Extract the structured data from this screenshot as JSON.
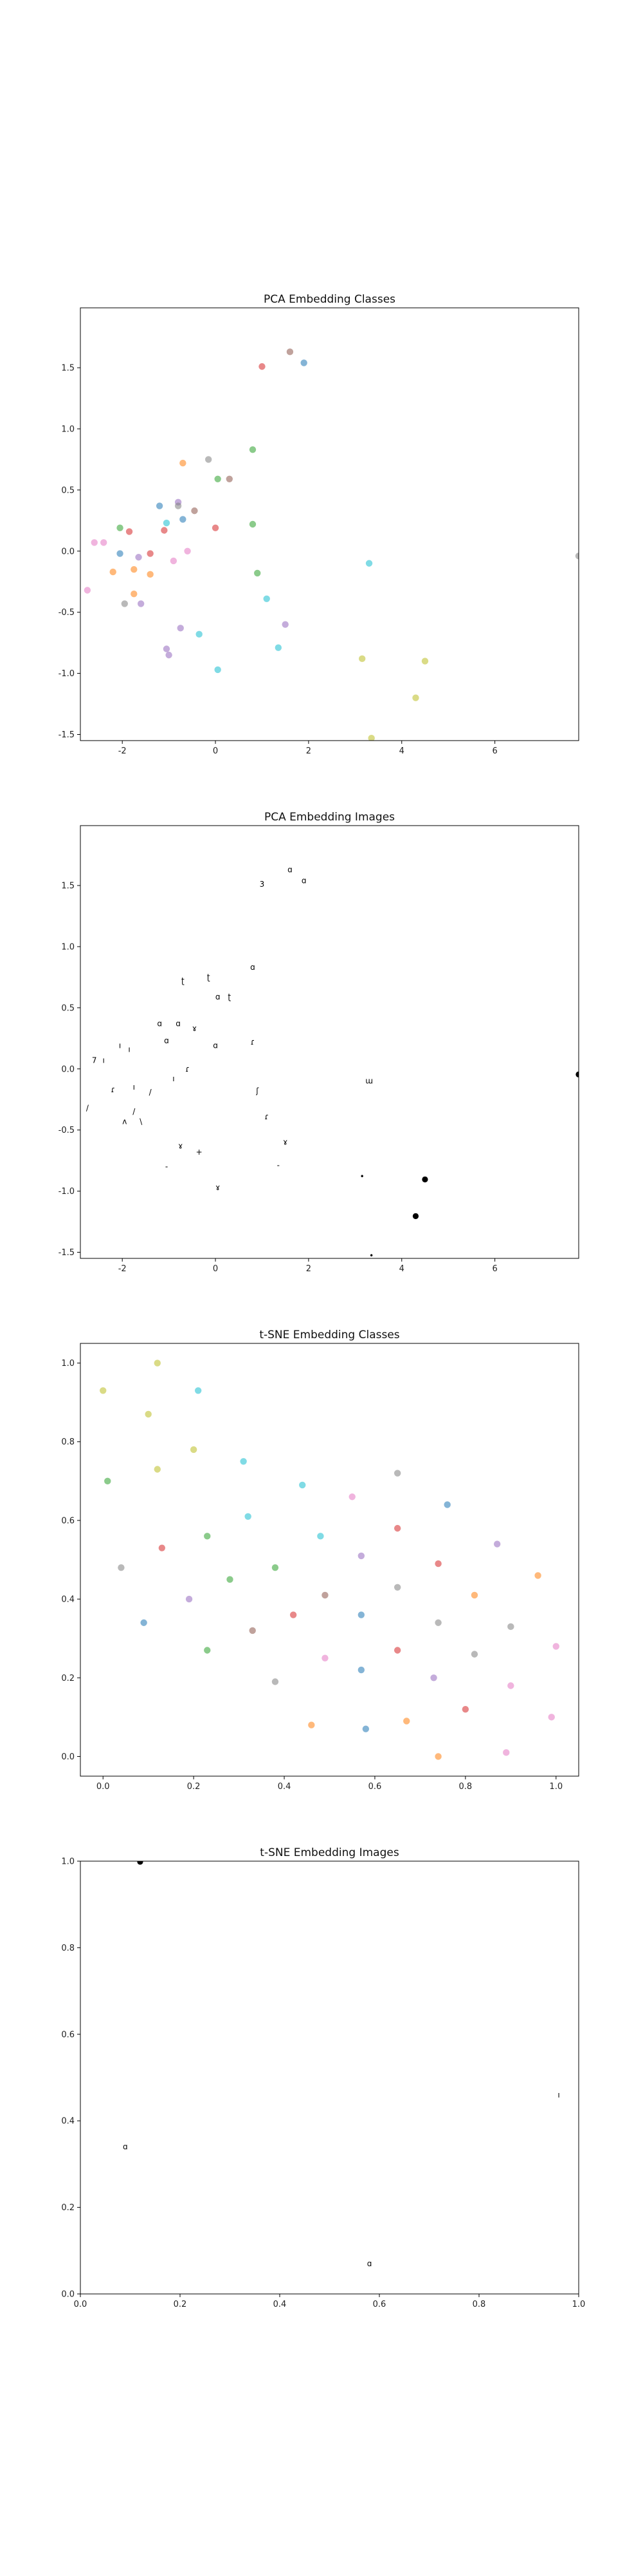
{
  "chart_data": [
    {
      "type": "scatter",
      "title": "PCA Embedding Classes",
      "xlim": [
        -2.9,
        7.8
      ],
      "ylim": [
        -1.55,
        1.99
      ],
      "xticks": [
        "-2",
        "0",
        "2",
        "4",
        "6"
      ],
      "xtick_values": [
        -2,
        0,
        2,
        4,
        6
      ],
      "yticks": [
        "1.5",
        "1.0",
        "0.5",
        "0.0",
        "-0.5",
        "-1.0",
        "-1.5"
      ],
      "ytick_values": [
        1.5,
        1.0,
        0.5,
        0.0,
        -0.5,
        -1.0,
        -1.5
      ],
      "grid": false,
      "points": [
        {
          "x": -2.75,
          "y": -0.32,
          "c": "#e377c2"
        },
        {
          "x": -2.6,
          "y": 0.07,
          "c": "#e377c2"
        },
        {
          "x": -2.4,
          "y": 0.07,
          "c": "#e377c2"
        },
        {
          "x": -2.2,
          "y": -0.17,
          "c": "#ff7f0e"
        },
        {
          "x": -2.05,
          "y": 0.19,
          "c": "#2ca02c"
        },
        {
          "x": -2.05,
          "y": -0.02,
          "c": "#1f77b4"
        },
        {
          "x": -1.95,
          "y": -0.43,
          "c": "#7f7f7f"
        },
        {
          "x": -1.85,
          "y": 0.16,
          "c": "#d62728"
        },
        {
          "x": -1.75,
          "y": -0.15,
          "c": "#ff7f0e"
        },
        {
          "x": -1.75,
          "y": -0.35,
          "c": "#ff7f0e"
        },
        {
          "x": -1.65,
          "y": -0.05,
          "c": "#9467bd"
        },
        {
          "x": -1.6,
          "y": -0.43,
          "c": "#9467bd"
        },
        {
          "x": -1.4,
          "y": -0.02,
          "c": "#d62728"
        },
        {
          "x": -1.4,
          "y": -0.19,
          "c": "#ff7f0e"
        },
        {
          "x": -1.2,
          "y": 0.37,
          "c": "#1f77b4"
        },
        {
          "x": -1.1,
          "y": 0.17,
          "c": "#d62728"
        },
        {
          "x": -1.05,
          "y": 0.23,
          "c": "#17becf"
        },
        {
          "x": -1.05,
          "y": -0.8,
          "c": "#9467bd"
        },
        {
          "x": -1.0,
          "y": -0.85,
          "c": "#9467bd"
        },
        {
          "x": -0.9,
          "y": -0.08,
          "c": "#e377c2"
        },
        {
          "x": -0.8,
          "y": 0.4,
          "c": "#9467bd"
        },
        {
          "x": -0.8,
          "y": 0.37,
          "c": "#7f7f7f"
        },
        {
          "x": -0.75,
          "y": -0.63,
          "c": "#9467bd"
        },
        {
          "x": -0.7,
          "y": 0.72,
          "c": "#ff7f0e"
        },
        {
          "x": -0.7,
          "y": 0.26,
          "c": "#1f77b4"
        },
        {
          "x": -0.6,
          "y": 0.0,
          "c": "#e377c2"
        },
        {
          "x": -0.45,
          "y": 0.33,
          "c": "#8c564b"
        },
        {
          "x": -0.35,
          "y": -0.68,
          "c": "#17becf"
        },
        {
          "x": -0.15,
          "y": 0.75,
          "c": "#7f7f7f"
        },
        {
          "x": 0.0,
          "y": 0.19,
          "c": "#d62728"
        },
        {
          "x": 0.05,
          "y": 0.59,
          "c": "#2ca02c"
        },
        {
          "x": 0.05,
          "y": -0.97,
          "c": "#17becf"
        },
        {
          "x": 0.3,
          "y": 0.59,
          "c": "#8c564b"
        },
        {
          "x": 0.8,
          "y": 0.83,
          "c": "#2ca02c"
        },
        {
          "x": 0.8,
          "y": 0.22,
          "c": "#2ca02c"
        },
        {
          "x": 0.9,
          "y": -0.18,
          "c": "#2ca02c"
        },
        {
          "x": 1.0,
          "y": 1.51,
          "c": "#d62728"
        },
        {
          "x": 1.1,
          "y": -0.39,
          "c": "#17becf"
        },
        {
          "x": 1.35,
          "y": -0.79,
          "c": "#17becf"
        },
        {
          "x": 1.5,
          "y": -0.6,
          "c": "#9467bd"
        },
        {
          "x": 1.6,
          "y": 1.63,
          "c": "#8c564b"
        },
        {
          "x": 1.9,
          "y": 1.54,
          "c": "#1f77b4"
        },
        {
          "x": 3.15,
          "y": -0.88,
          "c": "#bcbd22"
        },
        {
          "x": 3.3,
          "y": -0.1,
          "c": "#17becf"
        },
        {
          "x": 3.35,
          "y": -1.53,
          "c": "#bcbd22"
        },
        {
          "x": 4.3,
          "y": -1.2,
          "c": "#bcbd22"
        },
        {
          "x": 4.5,
          "y": -0.9,
          "c": "#bcbd22"
        },
        {
          "x": 7.8,
          "y": -0.04,
          "c": "#7f7f7f"
        }
      ]
    },
    {
      "type": "scatter",
      "title": "PCA Embedding Images",
      "xlim": [
        -2.9,
        7.8
      ],
      "ylim": [
        -1.55,
        1.99
      ],
      "xticks": [
        "-2",
        "0",
        "2",
        "4",
        "6"
      ],
      "xtick_values": [
        -2,
        0,
        2,
        4,
        6
      ],
      "yticks": [
        "1.5",
        "1.0",
        "0.5",
        "0.0",
        "-0.5",
        "-1.0",
        "-1.5"
      ],
      "ytick_values": [
        1.5,
        1.0,
        0.5,
        0.0,
        -0.5,
        -1.0,
        -1.5
      ],
      "grid": false,
      "points": [
        {
          "x": -2.75,
          "y": -0.32,
          "t": "/"
        },
        {
          "x": -2.6,
          "y": 0.07,
          "t": "7"
        },
        {
          "x": -2.4,
          "y": 0.07,
          "t": "ı"
        },
        {
          "x": -2.2,
          "y": -0.17,
          "t": "ɾ"
        },
        {
          "x": -2.05,
          "y": 0.19,
          "t": "ı"
        },
        {
          "x": -1.95,
          "y": -0.43,
          "t": "ʌ"
        },
        {
          "x": -1.85,
          "y": 0.16,
          "t": "ı"
        },
        {
          "x": -1.75,
          "y": -0.15,
          "t": "ı"
        },
        {
          "x": -1.75,
          "y": -0.35,
          "t": "/"
        },
        {
          "x": -1.6,
          "y": -0.43,
          "t": "\\"
        },
        {
          "x": -1.4,
          "y": -0.19,
          "t": "/"
        },
        {
          "x": -1.2,
          "y": 0.37,
          "t": "ɑ"
        },
        {
          "x": -1.05,
          "y": 0.23,
          "t": "ɑ"
        },
        {
          "x": -1.05,
          "y": -0.8,
          "t": "-"
        },
        {
          "x": -0.9,
          "y": -0.08,
          "t": "ı"
        },
        {
          "x": -0.8,
          "y": 0.37,
          "t": "ɑ"
        },
        {
          "x": -0.75,
          "y": -0.63,
          "t": "ɤ"
        },
        {
          "x": -0.7,
          "y": 0.72,
          "t": "ʈ"
        },
        {
          "x": -0.6,
          "y": 0.0,
          "t": "ɾ"
        },
        {
          "x": -0.45,
          "y": 0.33,
          "t": "ɤ"
        },
        {
          "x": -0.35,
          "y": -0.68,
          "t": "+"
        },
        {
          "x": -0.15,
          "y": 0.75,
          "t": "ʈ"
        },
        {
          "x": 0.0,
          "y": 0.19,
          "t": "ɑ"
        },
        {
          "x": 0.05,
          "y": 0.59,
          "t": "ɑ"
        },
        {
          "x": 0.05,
          "y": -0.97,
          "t": "ɤ"
        },
        {
          "x": 0.3,
          "y": 0.59,
          "t": "ʈ"
        },
        {
          "x": 0.8,
          "y": 0.83,
          "t": "ɑ"
        },
        {
          "x": 0.8,
          "y": 0.22,
          "t": "ɾ"
        },
        {
          "x": 0.9,
          "y": -0.18,
          "t": "ʃ"
        },
        {
          "x": 1.0,
          "y": 1.51,
          "t": "3"
        },
        {
          "x": 1.1,
          "y": -0.39,
          "t": "ɾ"
        },
        {
          "x": 1.35,
          "y": -0.79,
          "t": "-"
        },
        {
          "x": 1.5,
          "y": -0.6,
          "t": "ɤ"
        },
        {
          "x": 1.6,
          "y": 1.63,
          "t": "ɑ"
        },
        {
          "x": 1.9,
          "y": 1.54,
          "t": "ɑ"
        },
        {
          "x": 3.15,
          "y": -0.88,
          "t": "•"
        },
        {
          "x": 3.3,
          "y": -0.1,
          "t": "ɯ"
        },
        {
          "x": 3.35,
          "y": -1.53,
          "t": "•"
        },
        {
          "x": 4.3,
          "y": -1.2,
          "t": "●"
        },
        {
          "x": 4.5,
          "y": -0.9,
          "t": "●"
        },
        {
          "x": 7.8,
          "y": -0.04,
          "t": "●"
        }
      ]
    },
    {
      "type": "scatter",
      "title": "t-SNE Embedding Classes",
      "xlim": [
        -0.05,
        1.05
      ],
      "ylim": [
        -0.05,
        1.05
      ],
      "xticks": [
        "0.0",
        "0.2",
        "0.4",
        "0.6",
        "0.8",
        "1.0"
      ],
      "xtick_values": [
        0.0,
        0.2,
        0.4,
        0.6,
        0.8,
        1.0
      ],
      "yticks": [
        "1.0",
        "0.8",
        "0.6",
        "0.4",
        "0.2",
        "0.0"
      ],
      "ytick_values": [
        1.0,
        0.8,
        0.6,
        0.4,
        0.2,
        0.0
      ],
      "grid": false,
      "points": [
        {
          "x": 0.0,
          "y": 0.93,
          "c": "#bcbd22"
        },
        {
          "x": 0.01,
          "y": 0.7,
          "c": "#2ca02c"
        },
        {
          "x": 0.04,
          "y": 0.48,
          "c": "#7f7f7f"
        },
        {
          "x": 0.09,
          "y": 0.34,
          "c": "#1f77b4"
        },
        {
          "x": 0.1,
          "y": 0.87,
          "c": "#bcbd22"
        },
        {
          "x": 0.12,
          "y": 1.0,
          "c": "#bcbd22"
        },
        {
          "x": 0.12,
          "y": 0.73,
          "c": "#bcbd22"
        },
        {
          "x": 0.13,
          "y": 0.53,
          "c": "#d62728"
        },
        {
          "x": 0.19,
          "y": 0.4,
          "c": "#9467bd"
        },
        {
          "x": 0.2,
          "y": 0.78,
          "c": "#bcbd22"
        },
        {
          "x": 0.21,
          "y": 0.93,
          "c": "#17becf"
        },
        {
          "x": 0.23,
          "y": 0.56,
          "c": "#2ca02c"
        },
        {
          "x": 0.23,
          "y": 0.27,
          "c": "#2ca02c"
        },
        {
          "x": 0.28,
          "y": 0.45,
          "c": "#2ca02c"
        },
        {
          "x": 0.31,
          "y": 0.75,
          "c": "#17becf"
        },
        {
          "x": 0.32,
          "y": 0.61,
          "c": "#17becf"
        },
        {
          "x": 0.33,
          "y": 0.32,
          "c": "#8c564b"
        },
        {
          "x": 0.38,
          "y": 0.48,
          "c": "#2ca02c"
        },
        {
          "x": 0.38,
          "y": 0.19,
          "c": "#7f7f7f"
        },
        {
          "x": 0.42,
          "y": 0.36,
          "c": "#d62728"
        },
        {
          "x": 0.44,
          "y": 0.69,
          "c": "#17becf"
        },
        {
          "x": 0.46,
          "y": 0.08,
          "c": "#ff7f0e"
        },
        {
          "x": 0.48,
          "y": 0.56,
          "c": "#17becf"
        },
        {
          "x": 0.49,
          "y": 0.41,
          "c": "#8c564b"
        },
        {
          "x": 0.49,
          "y": 0.25,
          "c": "#e377c2"
        },
        {
          "x": 0.55,
          "y": 0.66,
          "c": "#e377c2"
        },
        {
          "x": 0.57,
          "y": 0.51,
          "c": "#9467bd"
        },
        {
          "x": 0.57,
          "y": 0.36,
          "c": "#1f77b4"
        },
        {
          "x": 0.57,
          "y": 0.22,
          "c": "#1f77b4"
        },
        {
          "x": 0.58,
          "y": 0.07,
          "c": "#1f77b4"
        },
        {
          "x": 0.65,
          "y": 0.72,
          "c": "#7f7f7f"
        },
        {
          "x": 0.65,
          "y": 0.58,
          "c": "#d62728"
        },
        {
          "x": 0.65,
          "y": 0.43,
          "c": "#7f7f7f"
        },
        {
          "x": 0.65,
          "y": 0.27,
          "c": "#d62728"
        },
        {
          "x": 0.67,
          "y": 0.09,
          "c": "#ff7f0e"
        },
        {
          "x": 0.73,
          "y": 0.2,
          "c": "#9467bd"
        },
        {
          "x": 0.74,
          "y": 0.49,
          "c": "#d62728"
        },
        {
          "x": 0.74,
          "y": 0.34,
          "c": "#7f7f7f"
        },
        {
          "x": 0.74,
          "y": 0.0,
          "c": "#ff7f0e"
        },
        {
          "x": 0.76,
          "y": 0.64,
          "c": "#1f77b4"
        },
        {
          "x": 0.8,
          "y": 0.12,
          "c": "#d62728"
        },
        {
          "x": 0.82,
          "y": 0.41,
          "c": "#ff7f0e"
        },
        {
          "x": 0.82,
          "y": 0.26,
          "c": "#7f7f7f"
        },
        {
          "x": 0.87,
          "y": 0.54,
          "c": "#9467bd"
        },
        {
          "x": 0.89,
          "y": 0.01,
          "c": "#e377c2"
        },
        {
          "x": 0.9,
          "y": 0.33,
          "c": "#7f7f7f"
        },
        {
          "x": 0.9,
          "y": 0.18,
          "c": "#e377c2"
        },
        {
          "x": 0.96,
          "y": 0.46,
          "c": "#ff7f0e"
        },
        {
          "x": 0.99,
          "y": 0.1,
          "c": "#e377c2"
        },
        {
          "x": 1.0,
          "y": 0.28,
          "c": "#e377c2"
        }
      ]
    },
    {
      "type": "scatter",
      "title": "t-SNE Embedding Images",
      "xlim": [
        0.0,
        1.0
      ],
      "ylim": [
        0.0,
        1.0
      ],
      "xticks": [
        "0.0",
        "0.2",
        "0.4",
        "0.6",
        "0.8",
        "1.0"
      ],
      "xtick_values": [
        0.0,
        0.2,
        0.4,
        0.6,
        0.8,
        1.0
      ],
      "yticks": [
        "1.0",
        "0.8",
        "0.6",
        "0.4",
        "0.2",
        "0.0"
      ],
      "ytick_values": [
        1.0,
        0.8,
        0.6,
        0.4,
        0.2,
        0.0
      ],
      "grid": false,
      "points": [
        {
          "x": 0.12,
          "y": 1.0,
          "t": "●"
        },
        {
          "x": 0.09,
          "y": 0.34,
          "t": "ɑ"
        },
        {
          "x": 0.58,
          "y": 0.07,
          "t": "ɑ"
        },
        {
          "x": 0.96,
          "y": 0.46,
          "t": "ı"
        }
      ]
    }
  ]
}
